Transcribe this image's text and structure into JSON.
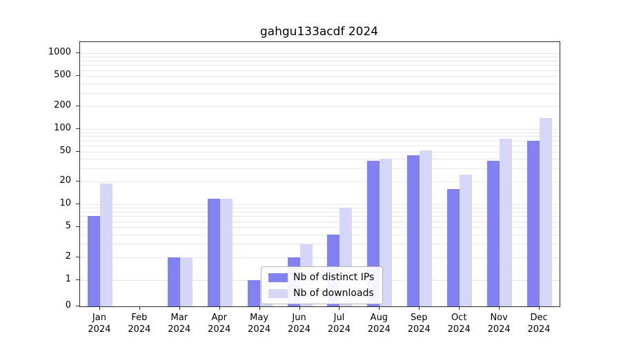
{
  "chart_data": {
    "type": "bar",
    "title": "gahgu133acdf 2024",
    "categories": [
      "Jan",
      "Feb",
      "Mar",
      "Apr",
      "May",
      "Jun",
      "Jul",
      "Aug",
      "Sep",
      "Oct",
      "Nov",
      "Dec"
    ],
    "year_label": "2024",
    "series": [
      {
        "name": "Nb of distinct IPs",
        "color": "#8181f1",
        "values": [
          7,
          0,
          2,
          12,
          1,
          2,
          4,
          38,
          45,
          16,
          38,
          70
        ]
      },
      {
        "name": "Nb of downloads",
        "color": "#d6d6f9",
        "values": [
          19,
          0,
          2,
          12,
          1,
          3,
          9,
          40,
          52,
          25,
          75,
          140
        ]
      }
    ],
    "yticks": [
      0,
      1,
      2,
      5,
      10,
      20,
      50,
      100,
      200,
      500,
      1000
    ],
    "ylim": [
      0,
      1200
    ],
    "scale": "symlog",
    "grid": "horizontal-minor",
    "legend_position": "lower center"
  }
}
